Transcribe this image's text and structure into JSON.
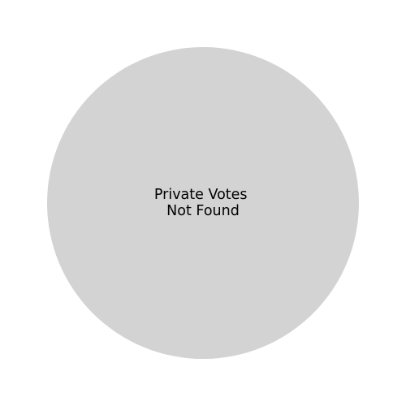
{
  "chart_data": {
    "type": "pie",
    "title": "",
    "slices": [
      {
        "label_lines": [
          "Private Votes",
          "Not Found"
        ],
        "value": 1,
        "color": "#d3d3d3"
      }
    ],
    "legend": "none"
  },
  "colors": {
    "background": "#ffffff",
    "placeholder_slice": "#d3d3d3",
    "text": "#000000"
  }
}
